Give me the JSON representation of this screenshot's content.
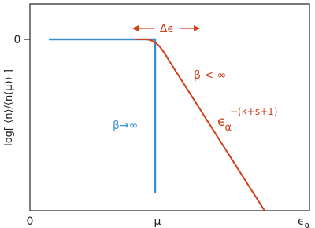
{
  "axes": {
    "y_label": "log[ ⟨n⟩/⟨n(μ)⟩ ]",
    "y_tick": "0",
    "x_ticks": [
      "0",
      "μ"
    ],
    "x_label": {
      "base": "ϵ",
      "sub": "α"
    }
  },
  "annotations": {
    "blue_label": "β→∞",
    "delta": "Δϵ",
    "red_label": "β < ∞",
    "power_law": {
      "base": "ϵ",
      "sub": "α",
      "sup": "−(κ+s+1)"
    }
  }
}
